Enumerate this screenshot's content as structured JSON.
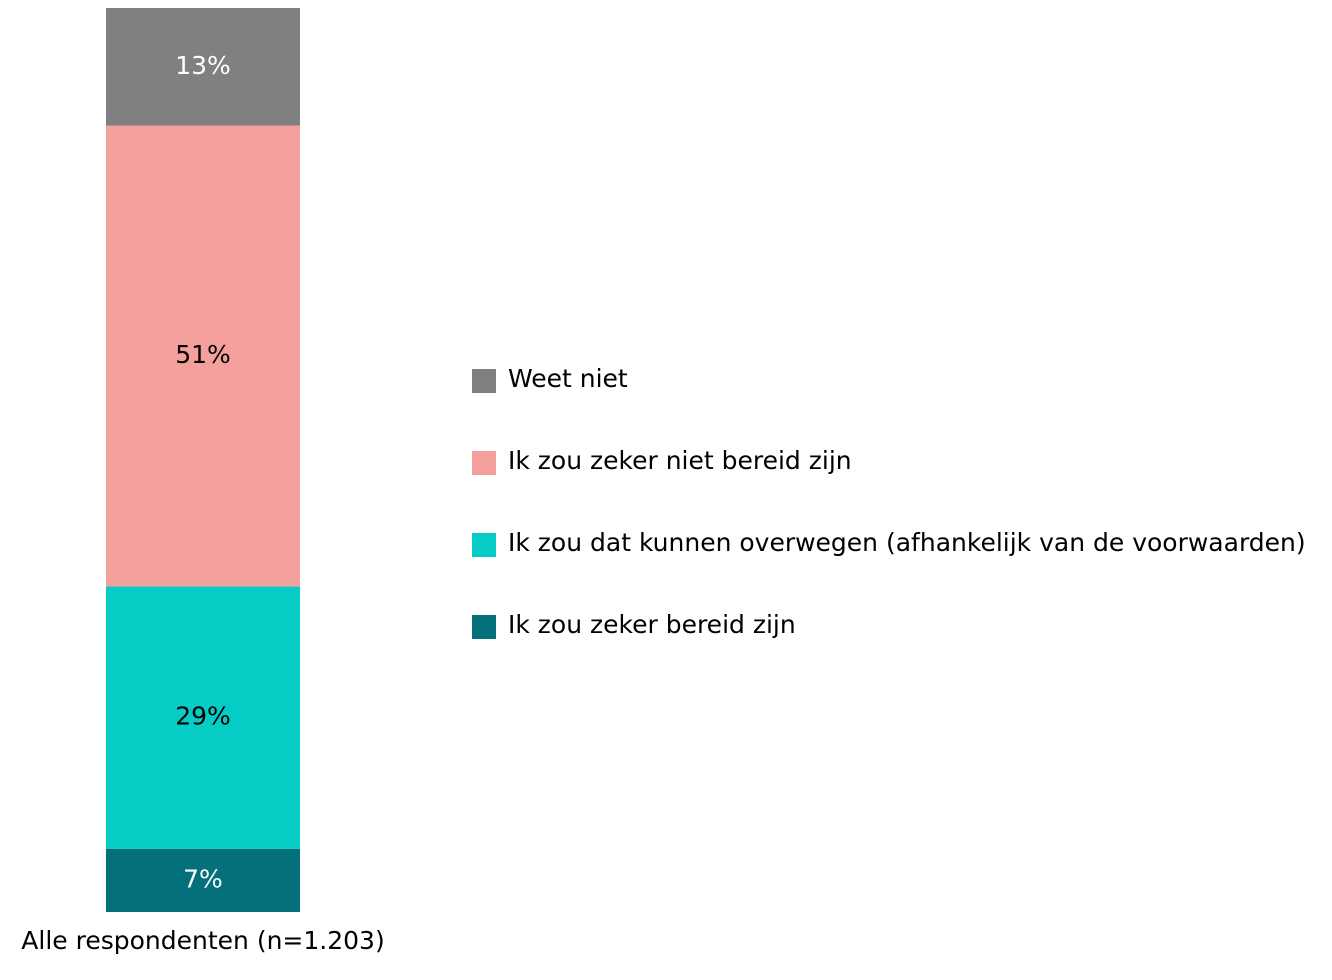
{
  "chart_data": {
    "type": "stacked_bar",
    "categories": [
      "Alle respondenten (n=1.203)"
    ],
    "series": [
      {
        "name": "Ik zou zeker bereid zijn",
        "color": "#03707a",
        "values": [
          7
        ],
        "value_labels": [
          "7%"
        ]
      },
      {
        "name": "Ik zou dat kunnen overwegen (afhankelijk van de voorwaarden)",
        "color": "#05cdc6",
        "values": [
          29
        ],
        "value_labels": [
          "29%"
        ]
      },
      {
        "name": "Ik zou zeker niet bereid zijn",
        "color": "#f4a09c",
        "values": [
          51
        ],
        "value_labels": [
          "51%"
        ]
      },
      {
        "name": "Weet niet",
        "color": "#808080",
        "values": [
          13
        ],
        "value_labels": [
          "13%"
        ]
      }
    ],
    "legend": "right"
  }
}
